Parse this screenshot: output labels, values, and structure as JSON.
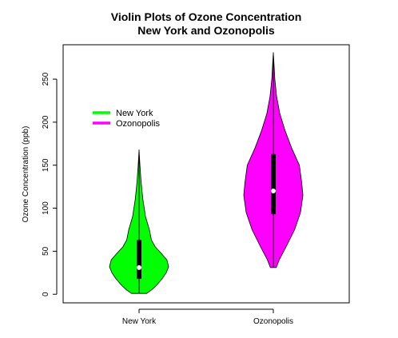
{
  "chart_data": {
    "type": "violin",
    "title_line1": "Violin Plots of Ozone Concentration",
    "title_line2": "New York and Ozonopolis",
    "xlabel": "",
    "ylabel": "Ozone Concentration (ppb)",
    "ylim": [
      -10,
      290
    ],
    "yticks": [
      "0",
      "50",
      "100",
      "150",
      "200",
      "250"
    ],
    "ytick_values": [
      0,
      50,
      100,
      150,
      200,
      250
    ],
    "grid": false,
    "legend_position": "top-left",
    "categories": [
      "New York",
      "Ozonopolis"
    ],
    "series": [
      {
        "name": "New York",
        "color": "#00ff00",
        "min": 1,
        "q1": 18,
        "median": 31,
        "q3": 63,
        "max": 168,
        "density_profile": [
          [
            1,
            0.26
          ],
          [
            5,
            0.42
          ],
          [
            10,
            0.58
          ],
          [
            18,
            0.78
          ],
          [
            25,
            0.92
          ],
          [
            32,
            1.0
          ],
          [
            40,
            0.94
          ],
          [
            48,
            0.74
          ],
          [
            55,
            0.55
          ],
          [
            63,
            0.42
          ],
          [
            75,
            0.35
          ],
          [
            90,
            0.22
          ],
          [
            110,
            0.13
          ],
          [
            130,
            0.07
          ],
          [
            150,
            0.03
          ],
          [
            168,
            0.0
          ]
        ]
      },
      {
        "name": "Ozonopolis",
        "color": "#ff00ff",
        "min": 31,
        "q1": 93,
        "median": 120,
        "q3": 163,
        "max": 281,
        "density_profile": [
          [
            31,
            0.1
          ],
          [
            40,
            0.2
          ],
          [
            55,
            0.43
          ],
          [
            75,
            0.72
          ],
          [
            95,
            0.92
          ],
          [
            115,
            1.0
          ],
          [
            130,
            0.96
          ],
          [
            150,
            0.88
          ],
          [
            170,
            0.62
          ],
          [
            190,
            0.4
          ],
          [
            210,
            0.22
          ],
          [
            230,
            0.11
          ],
          [
            250,
            0.05
          ],
          [
            270,
            0.02
          ],
          [
            281,
            0.0
          ]
        ]
      }
    ]
  }
}
